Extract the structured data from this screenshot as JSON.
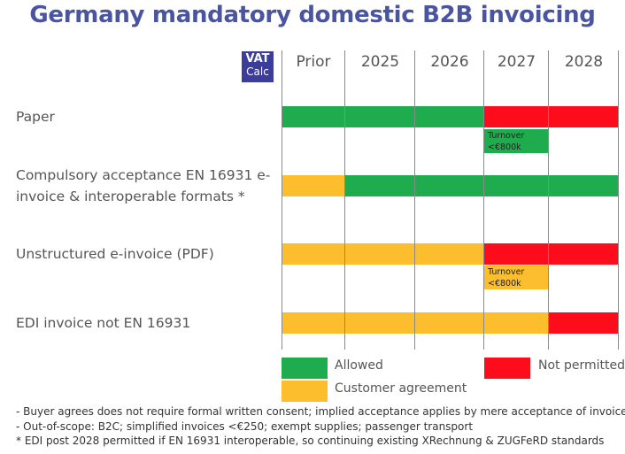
{
  "title": "Germany mandatory domestic B2B invoicing",
  "logo": {
    "line1": "VAT",
    "line2": "Calc"
  },
  "colors": {
    "allowed": "#1eac4e",
    "agreement": "#fdbe2d",
    "not_permitted": "#fd0d1b"
  },
  "chart_data": {
    "type": "table",
    "columns": [
      "Prior",
      "2025",
      "2026",
      "2027",
      "2028"
    ],
    "rows": [
      {
        "label_lines": [
          "Paper"
        ],
        "cells": [
          "allowed",
          "allowed",
          "allowed",
          "not_permitted",
          "not_permitted"
        ],
        "note": {
          "lines": [
            "Turnover",
            "<€800k"
          ],
          "status": "allowed",
          "column": 3
        }
      },
      {
        "label_lines": [
          "Compulsory acceptance EN 16931 e-",
          "invoice & interoperable formats *"
        ],
        "cells": [
          "agreement",
          "allowed",
          "allowed",
          "allowed",
          "allowed"
        ]
      },
      {
        "label_lines": [
          "Unstructured e-invoice (PDF)"
        ],
        "cells": [
          "agreement",
          "agreement",
          "agreement",
          "not_permitted",
          "not_permitted"
        ],
        "note": {
          "lines": [
            "Turnover",
            "<€800k"
          ],
          "status": "agreement",
          "column": 3
        }
      },
      {
        "label_lines": [
          "EDI invoice not EN 16931"
        ],
        "cells": [
          "agreement",
          "agreement",
          "agreement",
          "agreement",
          "not_permitted"
        ]
      }
    ],
    "legend": [
      {
        "status": "allowed",
        "label": "Allowed"
      },
      {
        "status": "not_permitted",
        "label": "Not permitted"
      },
      {
        "status": "agreement",
        "label": "Customer agreement"
      }
    ]
  },
  "footnotes": [
    "- Buyer agrees does not require formal written consent; implied acceptance applies by mere acceptance of invoice",
    "- Out-of-scope: B2C; simplified invoices <€250; exempt supplies; passenger transport",
    "* EDI post 2028 permitted if EN 16931 interoperable, so continuing existing XRechnung & ZUGFeRD standards"
  ]
}
